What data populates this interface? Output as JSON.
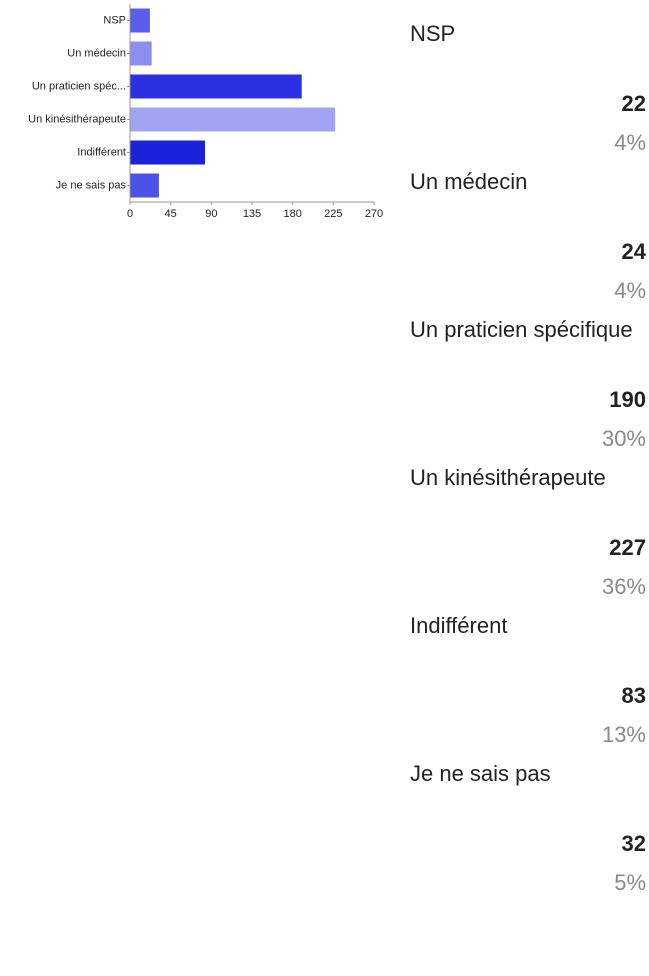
{
  "chart_data": {
    "type": "bar",
    "orientation": "horizontal",
    "categories": [
      "NSP",
      "Un médecin",
      "Un praticien spéc...",
      "Un kinésithérapeute",
      "Indifférent",
      "Je ne sais pas"
    ],
    "values": [
      22,
      24,
      190,
      227,
      83,
      32
    ],
    "colors": [
      "#5a5ee9",
      "#8c8ff0",
      "#2b31e2",
      "#a1a4f3",
      "#1b23d9",
      "#4c51e7"
    ],
    "xlim": [
      0,
      270
    ],
    "xticks": [
      0,
      45,
      90,
      135,
      180,
      225,
      270
    ],
    "grid": false
  },
  "summary": {
    "items": [
      {
        "label": "NSP",
        "percent": "4%"
      },
      {
        "label": "Un médecin",
        "percent": "4%"
      },
      {
        "label": "Un praticien spécifique",
        "percent": "30%"
      },
      {
        "label": "Un kinésithérapeute",
        "percent": "36%"
      },
      {
        "label": "Indifférent",
        "percent": "13%"
      },
      {
        "label": "Je ne sais pas",
        "percent": "5%"
      }
    ]
  }
}
